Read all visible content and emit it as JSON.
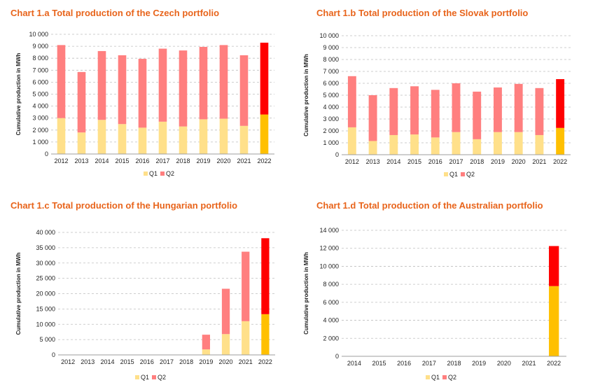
{
  "chart_data": [
    {
      "type": "bar",
      "stacked": true,
      "title": "Chart 1.a Total production of the Czech portfolio",
      "ylabel": "Cumulative production in MWh",
      "xlabel": "",
      "ylim": [
        0,
        10000
      ],
      "yticks": [
        0,
        1000,
        2000,
        3000,
        4000,
        5000,
        6000,
        7000,
        8000,
        9000,
        10000
      ],
      "ytick_labels": [
        "0",
        "1 000",
        "2 000",
        "3 000",
        "4 000",
        "5 000",
        "6 000",
        "7 000",
        "8 000",
        "9 000",
        "10 000"
      ],
      "grid": true,
      "legend": "bottom",
      "categories": [
        "2012",
        "2013",
        "2014",
        "2015",
        "2016",
        "2017",
        "2018",
        "2019",
        "2020",
        "2021",
        "2022"
      ],
      "series": [
        {
          "name": "Q1",
          "values": [
            3000,
            1800,
            2850,
            2500,
            2200,
            2700,
            2300,
            2900,
            2950,
            2350,
            3300
          ]
        },
        {
          "name": "Q2",
          "values": [
            6100,
            5050,
            5750,
            5750,
            5750,
            6100,
            6350,
            6050,
            6150,
            5900,
            6000
          ]
        }
      ],
      "colors": {
        "Q1": "#FFE08A",
        "Q2": "#FF7F7F"
      },
      "highlight": {
        "category": "2022",
        "Q1": "#FFC000",
        "Q2": "#FF0000"
      }
    },
    {
      "type": "bar",
      "stacked": true,
      "title": "Chart 1.b Total production of the Slovak portfolio",
      "ylabel": "Cumulative production in MWh",
      "xlabel": "",
      "ylim": [
        0,
        10000
      ],
      "yticks": [
        0,
        1000,
        2000,
        3000,
        4000,
        5000,
        6000,
        7000,
        8000,
        9000,
        10000
      ],
      "ytick_labels": [
        "0",
        "1 000",
        "2 000",
        "3 000",
        "4 000",
        "5 000",
        "6 000",
        "7 000",
        "8 000",
        "9 000",
        "10 000"
      ],
      "grid": true,
      "legend": "bottom",
      "categories": [
        "2012",
        "2013",
        "2014",
        "2015",
        "2016",
        "2017",
        "2018",
        "2019",
        "2020",
        "2021",
        "2022"
      ],
      "series": [
        {
          "name": "Q1",
          "values": [
            2300,
            1150,
            1650,
            1700,
            1450,
            1900,
            1300,
            1900,
            1900,
            1650,
            2250
          ]
        },
        {
          "name": "Q2",
          "values": [
            4300,
            3850,
            3950,
            4050,
            4000,
            4100,
            4000,
            3750,
            4050,
            3950,
            4100
          ]
        }
      ],
      "colors": {
        "Q1": "#FFE08A",
        "Q2": "#FF7F7F"
      },
      "highlight": {
        "category": "2022",
        "Q1": "#FFC000",
        "Q2": "#FF0000"
      }
    },
    {
      "type": "bar",
      "stacked": true,
      "title": "Chart 1.c Total production of the Hungarian portfolio",
      "ylabel": "Cumulative production in MWh",
      "xlabel": "",
      "ylim": [
        0,
        40000
      ],
      "yticks": [
        0,
        5000,
        10000,
        15000,
        20000,
        25000,
        30000,
        35000,
        40000
      ],
      "ytick_labels": [
        "0",
        "5 000",
        "10 000",
        "15 000",
        "20 000",
        "25 000",
        "30 000",
        "35 000",
        "40 000"
      ],
      "grid": true,
      "legend": "bottom",
      "categories": [
        "2012",
        "2013",
        "2014",
        "2015",
        "2016",
        "2017",
        "2018",
        "2019",
        "2020",
        "2021",
        "2022"
      ],
      "series": [
        {
          "name": "Q1",
          "values": [
            0,
            0,
            0,
            0,
            0,
            0,
            0,
            1800,
            6800,
            11000,
            13300
          ]
        },
        {
          "name": "Q2",
          "values": [
            0,
            0,
            0,
            0,
            0,
            0,
            0,
            4800,
            14800,
            22700,
            24800
          ]
        }
      ],
      "colors": {
        "Q1": "#FFE08A",
        "Q2": "#FF7F7F"
      },
      "highlight": {
        "category": "2022",
        "Q1": "#FFC000",
        "Q2": "#FF0000"
      }
    },
    {
      "type": "bar",
      "stacked": true,
      "title": "Chart 1.d Total production of the Australian portfolio",
      "ylabel": "Cumulative production in MWh",
      "xlabel": "",
      "ylim": [
        0,
        14000
      ],
      "yticks": [
        0,
        2000,
        4000,
        6000,
        8000,
        10000,
        12000,
        14000
      ],
      "ytick_labels": [
        "0",
        "2 000",
        "4 000",
        "6 000",
        "8 000",
        "10 000",
        "12 000",
        "14 000"
      ],
      "grid": true,
      "legend": "bottom",
      "categories": [
        "2014",
        "2015",
        "2016",
        "2017",
        "2018",
        "2019",
        "2020",
        "2021",
        "2022"
      ],
      "series": [
        {
          "name": "Q1",
          "values": [
            0,
            0,
            0,
            0,
            0,
            0,
            0,
            0,
            7800
          ]
        },
        {
          "name": "Q2",
          "values": [
            0,
            0,
            0,
            0,
            0,
            0,
            0,
            0,
            4450
          ]
        }
      ],
      "colors": {
        "Q1": "#FFE08A",
        "Q2": "#FF7F7F"
      },
      "highlight": {
        "category": "2022",
        "Q1": "#FFC000",
        "Q2": "#FF0000"
      }
    }
  ]
}
